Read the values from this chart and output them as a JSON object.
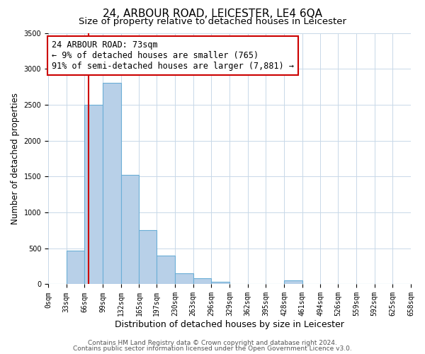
{
  "title": "24, ARBOUR ROAD, LEICESTER, LE4 6QA",
  "subtitle": "Size of property relative to detached houses in Leicester",
  "xlabel": "Distribution of detached houses by size in Leicester",
  "ylabel": "Number of detached properties",
  "bin_edges": [
    0,
    33,
    66,
    99,
    132,
    165,
    197,
    230,
    263,
    296,
    329,
    362,
    395,
    428,
    461,
    494,
    526,
    559,
    592,
    625,
    658
  ],
  "bin_counts": [
    5,
    470,
    2500,
    2800,
    1520,
    750,
    400,
    155,
    80,
    30,
    5,
    0,
    0,
    55,
    0,
    0,
    0,
    0,
    0,
    0
  ],
  "bar_color": "#b8d0e8",
  "bar_edge_color": "#6baed6",
  "property_line_x": 73,
  "property_line_color": "#cc0000",
  "annotation_text": "24 ARBOUR ROAD: 73sqm\n← 9% of detached houses are smaller (765)\n91% of semi-detached houses are larger (7,881) →",
  "annotation_box_facecolor": "#ffffff",
  "annotation_box_edgecolor": "#cc0000",
  "ylim": [
    0,
    3500
  ],
  "yticks": [
    0,
    500,
    1000,
    1500,
    2000,
    2500,
    3000,
    3500
  ],
  "tick_labels": [
    "0sqm",
    "33sqm",
    "66sqm",
    "99sqm",
    "132sqm",
    "165sqm",
    "197sqm",
    "230sqm",
    "263sqm",
    "296sqm",
    "329sqm",
    "362sqm",
    "395sqm",
    "428sqm",
    "461sqm",
    "494sqm",
    "526sqm",
    "559sqm",
    "592sqm",
    "625sqm",
    "658sqm"
  ],
  "footer_line1": "Contains HM Land Registry data © Crown copyright and database right 2024.",
  "footer_line2": "Contains public sector information licensed under the Open Government Licence v3.0.",
  "bg_color": "#ffffff",
  "grid_color": "#c8d8e8",
  "title_fontsize": 11,
  "subtitle_fontsize": 9.5,
  "xlabel_fontsize": 9,
  "ylabel_fontsize": 8.5,
  "tick_fontsize": 7,
  "annotation_fontsize": 8.5,
  "footer_fontsize": 6.5
}
